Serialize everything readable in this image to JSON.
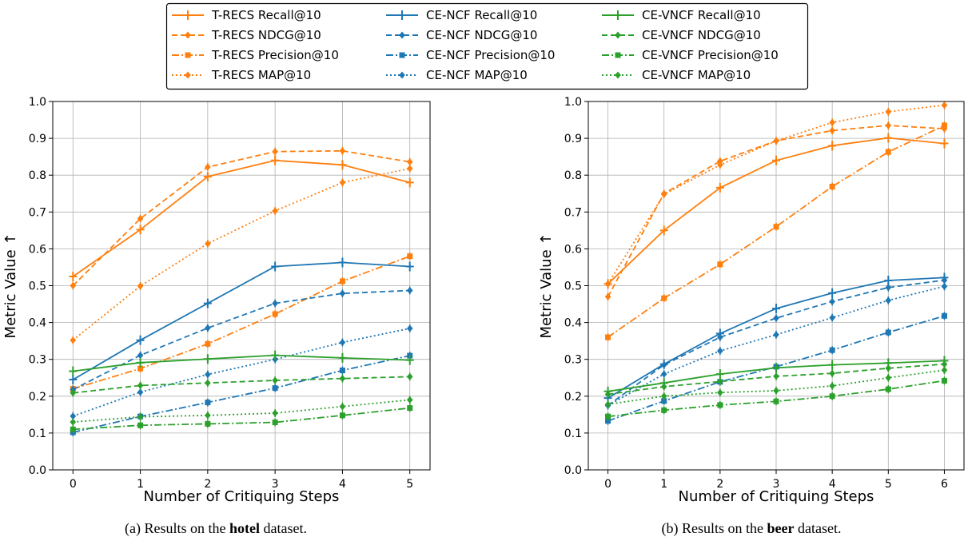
{
  "chart_data": [
    {
      "type": "line",
      "caption": {
        "prefix": "(a) Results on the ",
        "bold": "hotel",
        "suffix": " dataset."
      },
      "xlabel": "Number of Critiquing Steps",
      "ylabel": "Metric Value ↑",
      "x": [
        0,
        1,
        2,
        3,
        4,
        5
      ],
      "xlim": [
        -0.3,
        5.3
      ],
      "ylim": [
        0.0,
        1.0
      ],
      "yticks": [
        "0.0",
        "0.1",
        "0.2",
        "0.3",
        "0.4",
        "0.5",
        "0.6",
        "0.7",
        "0.8",
        "0.9",
        "1.0"
      ],
      "xticks": [
        "0",
        "1",
        "2",
        "3",
        "4",
        "5"
      ],
      "grid": true,
      "series": [
        {
          "name": "T-RECS Recall@10",
          "values": [
            0.525,
            0.652,
            0.796,
            0.84,
            0.828,
            0.78
          ]
        },
        {
          "name": "T-RECS NDCG@10",
          "values": [
            0.5,
            0.682,
            0.822,
            0.864,
            0.866,
            0.836
          ]
        },
        {
          "name": "T-RECS Precision@10",
          "values": [
            0.22,
            0.275,
            0.342,
            0.423,
            0.512,
            0.58
          ]
        },
        {
          "name": "T-RECS MAP@10",
          "values": [
            0.352,
            0.499,
            0.614,
            0.703,
            0.78,
            0.818
          ]
        },
        {
          "name": "CE-NCF Recall@10",
          "values": [
            0.245,
            0.352,
            0.452,
            0.552,
            0.563,
            0.552
          ]
        },
        {
          "name": "CE-NCF NDCG@10",
          "values": [
            0.218,
            0.311,
            0.385,
            0.452,
            0.479,
            0.487
          ]
        },
        {
          "name": "CE-NCF Precision@10",
          "values": [
            0.102,
            0.145,
            0.183,
            0.222,
            0.27,
            0.31
          ]
        },
        {
          "name": "CE-NCF MAP@10",
          "values": [
            0.146,
            0.211,
            0.259,
            0.3,
            0.346,
            0.384
          ]
        },
        {
          "name": "CE-VNCF Recall@10",
          "values": [
            0.268,
            0.291,
            0.301,
            0.311,
            0.304,
            0.298
          ]
        },
        {
          "name": "CE-VNCF NDCG@10",
          "values": [
            0.209,
            0.229,
            0.236,
            0.243,
            0.248,
            0.253
          ]
        },
        {
          "name": "CE-VNCF Precision@10",
          "values": [
            0.11,
            0.121,
            0.125,
            0.129,
            0.148,
            0.168
          ]
        },
        {
          "name": "CE-VNCF MAP@10",
          "values": [
            0.13,
            0.144,
            0.148,
            0.154,
            0.172,
            0.19
          ]
        }
      ]
    },
    {
      "type": "line",
      "caption": {
        "prefix": "(b) Results on the ",
        "bold": "beer",
        "suffix": " dataset."
      },
      "xlabel": "Number of Critiquing Steps",
      "ylabel": "Metric Value ↑",
      "x": [
        0,
        1,
        2,
        3,
        4,
        5,
        6
      ],
      "xlim": [
        -0.35,
        6.35
      ],
      "ylim": [
        0.0,
        1.0
      ],
      "yticks": [
        "0.0",
        "0.1",
        "0.2",
        "0.3",
        "0.4",
        "0.5",
        "0.6",
        "0.7",
        "0.8",
        "0.9",
        "1.0"
      ],
      "xticks": [
        "0",
        "1",
        "2",
        "3",
        "4",
        "5",
        "6"
      ],
      "grid": true,
      "series": [
        {
          "name": "T-RECS Recall@10",
          "values": [
            0.505,
            0.65,
            0.766,
            0.84,
            0.88,
            0.901,
            0.886
          ]
        },
        {
          "name": "T-RECS NDCG@10",
          "values": [
            0.47,
            0.75,
            0.838,
            0.893,
            0.921,
            0.935,
            0.926
          ]
        },
        {
          "name": "T-RECS Precision@10",
          "values": [
            0.36,
            0.466,
            0.558,
            0.66,
            0.769,
            0.863,
            0.935
          ]
        },
        {
          "name": "T-RECS MAP@10",
          "values": [
            0.505,
            0.748,
            0.828,
            0.893,
            0.943,
            0.972,
            0.99
          ]
        },
        {
          "name": "CE-NCF Recall@10",
          "values": [
            0.195,
            0.287,
            0.37,
            0.438,
            0.48,
            0.514,
            0.522
          ]
        },
        {
          "name": "CE-NCF NDCG@10",
          "values": [
            0.175,
            0.285,
            0.36,
            0.412,
            0.457,
            0.495,
            0.515
          ]
        },
        {
          "name": "CE-NCF Precision@10",
          "values": [
            0.133,
            0.187,
            0.239,
            0.28,
            0.325,
            0.373,
            0.418
          ]
        },
        {
          "name": "CE-NCF MAP@10",
          "values": [
            0.175,
            0.26,
            0.323,
            0.367,
            0.413,
            0.46,
            0.498
          ]
        },
        {
          "name": "CE-VNCF Recall@10",
          "values": [
            0.213,
            0.236,
            0.26,
            0.277,
            0.285,
            0.29,
            0.296
          ]
        },
        {
          "name": "CE-VNCF NDCG@10",
          "values": [
            0.205,
            0.226,
            0.24,
            0.254,
            0.262,
            0.276,
            0.287
          ]
        },
        {
          "name": "CE-VNCF Precision@10",
          "values": [
            0.145,
            0.162,
            0.176,
            0.186,
            0.2,
            0.219,
            0.242
          ]
        },
        {
          "name": "CE-VNCF MAP@10",
          "values": [
            0.178,
            0.2,
            0.21,
            0.215,
            0.228,
            0.25,
            0.271
          ]
        }
      ]
    }
  ],
  "legend": {
    "placement": "top-center",
    "columns": 3,
    "entries": [
      [
        "T-RECS Recall@10",
        "T-RECS NDCG@10",
        "T-RECS Precision@10",
        "T-RECS MAP@10"
      ],
      [
        "CE-NCF Recall@10",
        "CE-NCF NDCG@10",
        "CE-NCF Precision@10",
        "CE-NCF MAP@10"
      ],
      [
        "CE-VNCF Recall@10",
        "CE-VNCF NDCG@10",
        "CE-VNCF Precision@10",
        "CE-VNCF MAP@10"
      ]
    ]
  },
  "styles": {
    "colors": {
      "T-RECS": "#ff7f0e",
      "CE-NCF": "#1f77b4",
      "CE-VNCF": "#2ca02c"
    },
    "metrics": {
      "Recall@10": {
        "line": "solid",
        "marker": "plus"
      },
      "NDCG@10": {
        "line": "dashed",
        "marker": "diamond"
      },
      "Precision@10": {
        "line": "dashdot",
        "marker": "square"
      },
      "MAP@10": {
        "line": "dotted",
        "marker": "diamond"
      }
    }
  }
}
